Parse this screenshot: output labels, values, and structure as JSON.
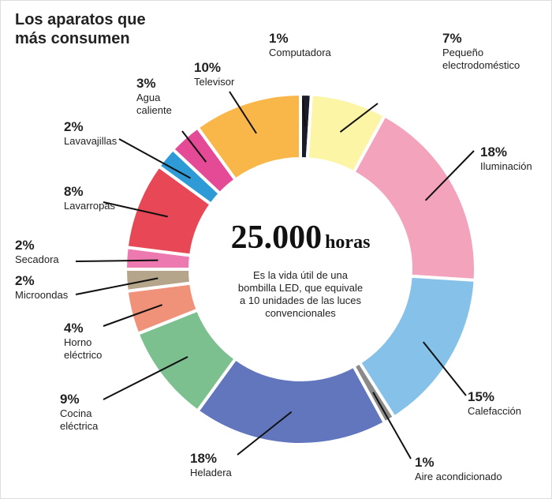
{
  "chart_data": {
    "type": "donut",
    "title": "Los aparatos que más consumen",
    "center_value": "25.000",
    "center_unit": "horas",
    "center_text": "Es la vida útil de una bombilla LED, que equivale a 10 unidades de las luces convencionales",
    "categories": [
      "Computadora",
      "Pequeño electrodoméstico",
      "Iluminación",
      "Calefacción",
      "Aire acondicionado",
      "Heladera",
      "Cocina eléctrica",
      "Horno eléctrico",
      "Microondas",
      "Secadora",
      "Lavarropas",
      "Lavavajillas",
      "Agua caliente",
      "Televisor"
    ],
    "values": [
      1,
      7,
      18,
      15,
      1,
      18,
      9,
      4,
      2,
      2,
      8,
      2,
      3,
      10
    ],
    "value_labels": [
      "1%",
      "7%",
      "18%",
      "15%",
      "1%",
      "18%",
      "9%",
      "4%",
      "2%",
      "2%",
      "8%",
      "2%",
      "3%",
      "10%"
    ],
    "colors": [
      "#1c1d2b",
      "#fdf5a6",
      "#f4a3bd",
      "#86c1ea",
      "#8a8a8a",
      "#6176bc",
      "#7dc08f",
      "#f0917a",
      "#b5a58a",
      "#ec7ab0",
      "#e84856",
      "#2f9bd6",
      "#e54a96",
      "#f9b74a"
    ]
  }
}
